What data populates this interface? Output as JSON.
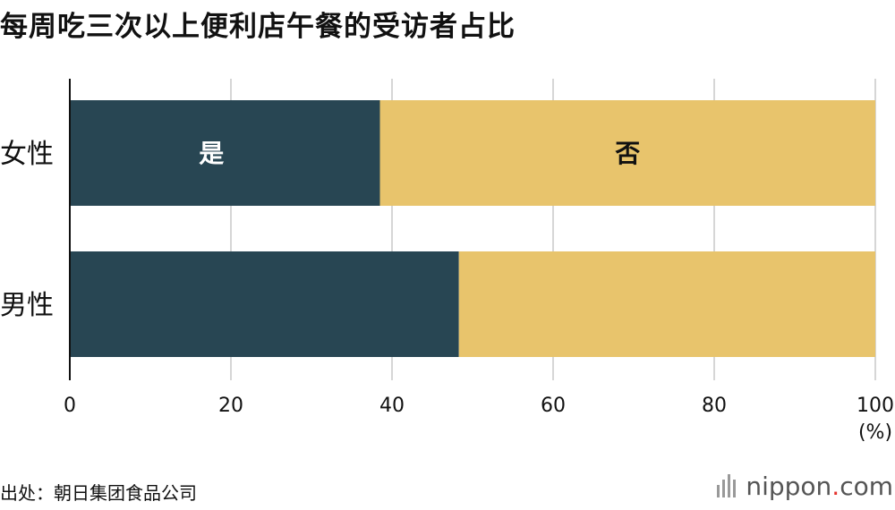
{
  "chart_data": {
    "type": "bar",
    "orientation": "horizontal",
    "stacked": true,
    "title": "每周吃三次以上便利店午餐的受访者占比",
    "categories": [
      "女性",
      "男性"
    ],
    "series": [
      {
        "name": "是",
        "values": [
          38.5,
          48.3
        ],
        "color": "#284653"
      },
      {
        "name": "否",
        "values": [
          61.5,
          51.7
        ],
        "color": "#e8c46c"
      }
    ],
    "xlim": [
      0,
      100
    ],
    "xticks": [
      0,
      20,
      40,
      60,
      80,
      100
    ],
    "x_unit": "(%)",
    "grid": true
  },
  "source": "出处：朝日集团食品公司",
  "logo": {
    "name": "nippon",
    "dot": ".",
    "suffix": "com"
  }
}
